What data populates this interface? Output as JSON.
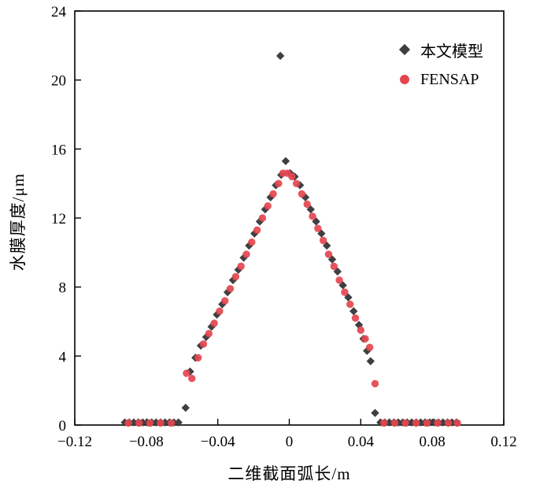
{
  "chart_data": {
    "type": "scatter",
    "title": "",
    "xlabel": "二维截面弧长/m",
    "ylabel": "水膜厚度/μm",
    "xlim": [
      -0.12,
      0.12
    ],
    "ylim": [
      0,
      24
    ],
    "grid": false,
    "legend_position": "top-right-inside",
    "xticks": [
      -0.12,
      -0.08,
      -0.04,
      0,
      0.04,
      0.08,
      0.12
    ],
    "yticks": [
      0,
      4,
      8,
      12,
      16,
      20,
      24
    ],
    "xtick_labels": [
      "−0.12",
      "−0.08",
      "−0.04",
      "0",
      "0.04",
      "0.08",
      "0.12"
    ],
    "ytick_labels": [
      "0",
      "4",
      "8",
      "12",
      "16",
      "20",
      "24"
    ],
    "series": [
      {
        "name": "本文模型",
        "marker": "diamond",
        "color": "#3f3f41",
        "points": [
          [
            -0.092,
            0.15
          ],
          [
            -0.0895,
            0.15
          ],
          [
            -0.087,
            0.15
          ],
          [
            -0.0845,
            0.15
          ],
          [
            -0.082,
            0.15
          ],
          [
            -0.0795,
            0.15
          ],
          [
            -0.077,
            0.15
          ],
          [
            -0.0745,
            0.15
          ],
          [
            -0.072,
            0.15
          ],
          [
            -0.0695,
            0.15
          ],
          [
            -0.067,
            0.15
          ],
          [
            -0.0645,
            0.15
          ],
          [
            -0.062,
            0.15
          ],
          [
            -0.058,
            1.0
          ],
          [
            -0.0555,
            3.1
          ],
          [
            -0.0525,
            3.9
          ],
          [
            -0.0495,
            4.6
          ],
          [
            -0.0465,
            5.1
          ],
          [
            -0.0435,
            5.7
          ],
          [
            -0.0405,
            6.4
          ],
          [
            -0.0375,
            7.0
          ],
          [
            -0.0345,
            7.7
          ],
          [
            -0.0315,
            8.4
          ],
          [
            -0.0285,
            9.0
          ],
          [
            -0.0255,
            9.7
          ],
          [
            -0.0225,
            10.4
          ],
          [
            -0.0195,
            11.1
          ],
          [
            -0.0165,
            11.8
          ],
          [
            -0.0135,
            12.5
          ],
          [
            -0.0105,
            13.2
          ],
          [
            -0.0075,
            13.9
          ],
          [
            -0.005,
            21.4
          ],
          [
            -0.0045,
            14.5
          ],
          [
            -0.002,
            15.3
          ],
          [
            0.0005,
            14.6
          ],
          [
            0.003,
            14.4
          ],
          [
            0.006,
            13.9
          ],
          [
            0.009,
            13.2
          ],
          [
            0.012,
            12.5
          ],
          [
            0.015,
            11.8
          ],
          [
            0.018,
            11.1
          ],
          [
            0.021,
            10.4
          ],
          [
            0.024,
            9.6
          ],
          [
            0.027,
            8.9
          ],
          [
            0.03,
            8.1
          ],
          [
            0.033,
            7.4
          ],
          [
            0.036,
            6.6
          ],
          [
            0.039,
            5.8
          ],
          [
            0.0415,
            5.0
          ],
          [
            0.0435,
            4.3
          ],
          [
            0.0455,
            3.7
          ],
          [
            0.048,
            0.7
          ],
          [
            0.051,
            0.15
          ],
          [
            0.0535,
            0.15
          ],
          [
            0.056,
            0.15
          ],
          [
            0.0585,
            0.15
          ],
          [
            0.061,
            0.15
          ],
          [
            0.0635,
            0.15
          ],
          [
            0.066,
            0.15
          ],
          [
            0.0685,
            0.15
          ],
          [
            0.071,
            0.15
          ],
          [
            0.0735,
            0.15
          ],
          [
            0.076,
            0.15
          ],
          [
            0.0785,
            0.15
          ],
          [
            0.081,
            0.15
          ],
          [
            0.0835,
            0.15
          ],
          [
            0.086,
            0.15
          ],
          [
            0.0885,
            0.15
          ],
          [
            0.091,
            0.15
          ],
          [
            0.0935,
            0.15
          ]
        ]
      },
      {
        "name": "FENSAP",
        "marker": "circle",
        "color": "#e4464f",
        "points": [
          [
            -0.09,
            0.12
          ],
          [
            -0.084,
            0.12
          ],
          [
            -0.078,
            0.12
          ],
          [
            -0.072,
            0.12
          ],
          [
            -0.066,
            0.12
          ],
          [
            -0.0575,
            3.0
          ],
          [
            -0.0545,
            2.7
          ],
          [
            -0.051,
            3.9
          ],
          [
            -0.048,
            4.7
          ],
          [
            -0.045,
            5.3
          ],
          [
            -0.042,
            5.9
          ],
          [
            -0.039,
            6.6
          ],
          [
            -0.036,
            7.2
          ],
          [
            -0.033,
            7.9
          ],
          [
            -0.03,
            8.6
          ],
          [
            -0.027,
            9.2
          ],
          [
            -0.024,
            9.9
          ],
          [
            -0.021,
            10.6
          ],
          [
            -0.018,
            11.3
          ],
          [
            -0.015,
            12.0
          ],
          [
            -0.012,
            12.7
          ],
          [
            -0.009,
            13.4
          ],
          [
            -0.006,
            14.0
          ],
          [
            -0.0035,
            14.6
          ],
          [
            -0.001,
            14.6
          ],
          [
            0.0015,
            14.4
          ],
          [
            0.004,
            14.0
          ],
          [
            0.007,
            13.4
          ],
          [
            0.01,
            12.8
          ],
          [
            0.013,
            12.1
          ],
          [
            0.016,
            11.4
          ],
          [
            0.019,
            10.7
          ],
          [
            0.022,
            9.9
          ],
          [
            0.025,
            9.2
          ],
          [
            0.028,
            8.4
          ],
          [
            0.031,
            7.7
          ],
          [
            0.034,
            7.0
          ],
          [
            0.037,
            6.2
          ],
          [
            0.04,
            5.5
          ],
          [
            0.0425,
            5.0
          ],
          [
            0.045,
            4.5
          ],
          [
            0.048,
            2.4
          ],
          [
            0.053,
            0.12
          ],
          [
            0.059,
            0.12
          ],
          [
            0.065,
            0.12
          ],
          [
            0.071,
            0.12
          ],
          [
            0.077,
            0.12
          ],
          [
            0.083,
            0.12
          ],
          [
            0.089,
            0.12
          ],
          [
            0.094,
            0.12
          ]
        ]
      }
    ]
  }
}
